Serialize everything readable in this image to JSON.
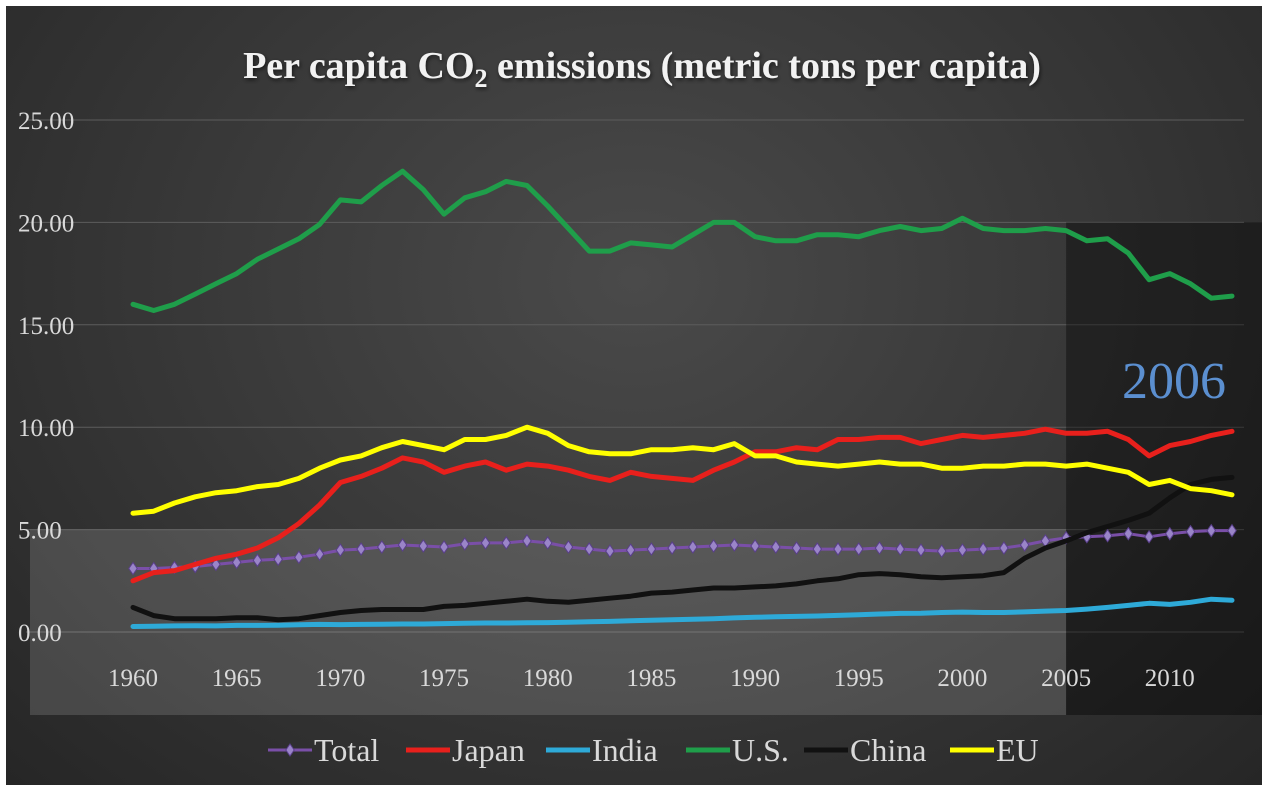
{
  "chart_data": {
    "type": "line",
    "title": {
      "pre": "Per capita CO",
      "sub": "2",
      "post": " emissions (metric tons per capita)"
    },
    "xlabel": "",
    "ylabel": "",
    "xlim": [
      1960,
      2013
    ],
    "ylim": [
      0,
      25
    ],
    "x_tick_labels": [
      "1960",
      "1965",
      "1970",
      "1975",
      "1980",
      "1985",
      "1990",
      "1995",
      "2000",
      "2005",
      "2010"
    ],
    "y_tick_labels": [
      "0.00",
      "5.00",
      "10.00",
      "15.00",
      "20.00",
      "25.00"
    ],
    "grid": "horizontal",
    "legend_position": "bottom",
    "annotation": {
      "text": "2006",
      "color": "#5b8fd0"
    },
    "highlight_regions": [
      {
        "x_from": 1955,
        "x_to": 2005,
        "y_from": 0,
        "y_to": 5
      },
      {
        "x_from": 2005,
        "x_to": 2013.5,
        "y_from": 0,
        "y_to": 20
      }
    ],
    "x": [
      1960,
      1961,
      1962,
      1963,
      1964,
      1965,
      1966,
      1967,
      1968,
      1969,
      1970,
      1971,
      1972,
      1973,
      1974,
      1975,
      1976,
      1977,
      1978,
      1979,
      1980,
      1981,
      1982,
      1983,
      1984,
      1985,
      1986,
      1987,
      1988,
      1989,
      1990,
      1991,
      1992,
      1993,
      1994,
      1995,
      1996,
      1997,
      1998,
      1999,
      2000,
      2001,
      2002,
      2003,
      2004,
      2005,
      2006,
      2007,
      2008,
      2009,
      2010,
      2011,
      2012,
      2013
    ],
    "series": [
      {
        "name": "Total",
        "color": "#7a4fa8",
        "marker": "diamond",
        "values": [
          3.1,
          3.1,
          3.15,
          3.2,
          3.3,
          3.4,
          3.5,
          3.55,
          3.65,
          3.8,
          4.0,
          4.05,
          4.15,
          4.25,
          4.2,
          4.15,
          4.3,
          4.35,
          4.35,
          4.45,
          4.35,
          4.15,
          4.05,
          3.95,
          4.0,
          4.05,
          4.1,
          4.15,
          4.2,
          4.25,
          4.2,
          4.15,
          4.1,
          4.05,
          4.05,
          4.05,
          4.1,
          4.05,
          4.0,
          3.95,
          4.0,
          4.05,
          4.1,
          4.25,
          4.45,
          4.6,
          4.65,
          4.7,
          4.8,
          4.65,
          4.8,
          4.9,
          4.95,
          4.95
        ]
      },
      {
        "name": "Japan",
        "color": "#e8201c",
        "values": [
          2.5,
          2.9,
          3.0,
          3.3,
          3.6,
          3.8,
          4.1,
          4.6,
          5.3,
          6.2,
          7.3,
          7.6,
          8.0,
          8.5,
          8.3,
          7.8,
          8.1,
          8.3,
          7.9,
          8.2,
          8.1,
          7.9,
          7.6,
          7.4,
          7.8,
          7.6,
          7.5,
          7.4,
          7.9,
          8.3,
          8.8,
          8.8,
          9.0,
          8.9,
          9.4,
          9.4,
          9.5,
          9.5,
          9.2,
          9.4,
          9.6,
          9.5,
          9.6,
          9.7,
          9.9,
          9.7,
          9.7,
          9.8,
          9.4,
          8.6,
          9.1,
          9.3,
          9.6,
          9.8
        ]
      },
      {
        "name": "India",
        "color": "#2eaad8",
        "values": [
          0.27,
          0.28,
          0.3,
          0.31,
          0.3,
          0.32,
          0.32,
          0.33,
          0.35,
          0.37,
          0.36,
          0.37,
          0.38,
          0.39,
          0.39,
          0.41,
          0.43,
          0.44,
          0.44,
          0.45,
          0.46,
          0.48,
          0.5,
          0.52,
          0.55,
          0.57,
          0.6,
          0.62,
          0.65,
          0.69,
          0.72,
          0.74,
          0.76,
          0.78,
          0.81,
          0.84,
          0.88,
          0.91,
          0.92,
          0.95,
          0.97,
          0.95,
          0.95,
          0.98,
          1.02,
          1.05,
          1.12,
          1.2,
          1.3,
          1.4,
          1.35,
          1.45,
          1.6,
          1.55
        ]
      },
      {
        "name": "U.S.",
        "color": "#1f9e4a",
        "values": [
          16.0,
          15.7,
          16.0,
          16.5,
          17.0,
          17.5,
          18.2,
          18.7,
          19.2,
          19.9,
          21.1,
          21.0,
          21.8,
          22.5,
          21.6,
          20.4,
          21.2,
          21.5,
          22.0,
          21.8,
          20.8,
          19.7,
          18.6,
          18.6,
          19.0,
          18.9,
          18.8,
          19.4,
          20.0,
          20.0,
          19.3,
          19.1,
          19.1,
          19.4,
          19.4,
          19.3,
          19.6,
          19.8,
          19.6,
          19.7,
          20.2,
          19.7,
          19.6,
          19.6,
          19.7,
          19.6,
          19.1,
          19.2,
          18.5,
          17.2,
          17.5,
          17.0,
          16.3,
          16.4
        ]
      },
      {
        "name": "China",
        "color": "#111111",
        "values": [
          1.2,
          0.8,
          0.65,
          0.65,
          0.65,
          0.7,
          0.7,
          0.6,
          0.65,
          0.8,
          0.95,
          1.05,
          1.1,
          1.1,
          1.1,
          1.25,
          1.3,
          1.4,
          1.5,
          1.6,
          1.5,
          1.45,
          1.55,
          1.65,
          1.75,
          1.9,
          1.95,
          2.05,
          2.15,
          2.15,
          2.2,
          2.25,
          2.35,
          2.5,
          2.6,
          2.8,
          2.85,
          2.8,
          2.7,
          2.65,
          2.7,
          2.75,
          2.9,
          3.6,
          4.1,
          4.45,
          4.85,
          5.15,
          5.45,
          5.8,
          6.55,
          7.2,
          7.45,
          7.55
        ]
      },
      {
        "name": "EU",
        "color": "#ffff00",
        "values": [
          5.8,
          5.9,
          6.3,
          6.6,
          6.8,
          6.9,
          7.1,
          7.2,
          7.5,
          8.0,
          8.4,
          8.6,
          9.0,
          9.3,
          9.1,
          8.9,
          9.4,
          9.4,
          9.6,
          10.0,
          9.7,
          9.1,
          8.8,
          8.7,
          8.7,
          8.9,
          8.9,
          9.0,
          8.9,
          9.2,
          8.6,
          8.6,
          8.3,
          8.2,
          8.1,
          8.2,
          8.3,
          8.2,
          8.2,
          8.0,
          8.0,
          8.1,
          8.1,
          8.2,
          8.2,
          8.1,
          8.2,
          8.0,
          7.8,
          7.2,
          7.4,
          7.0,
          6.9,
          6.7
        ]
      }
    ]
  }
}
